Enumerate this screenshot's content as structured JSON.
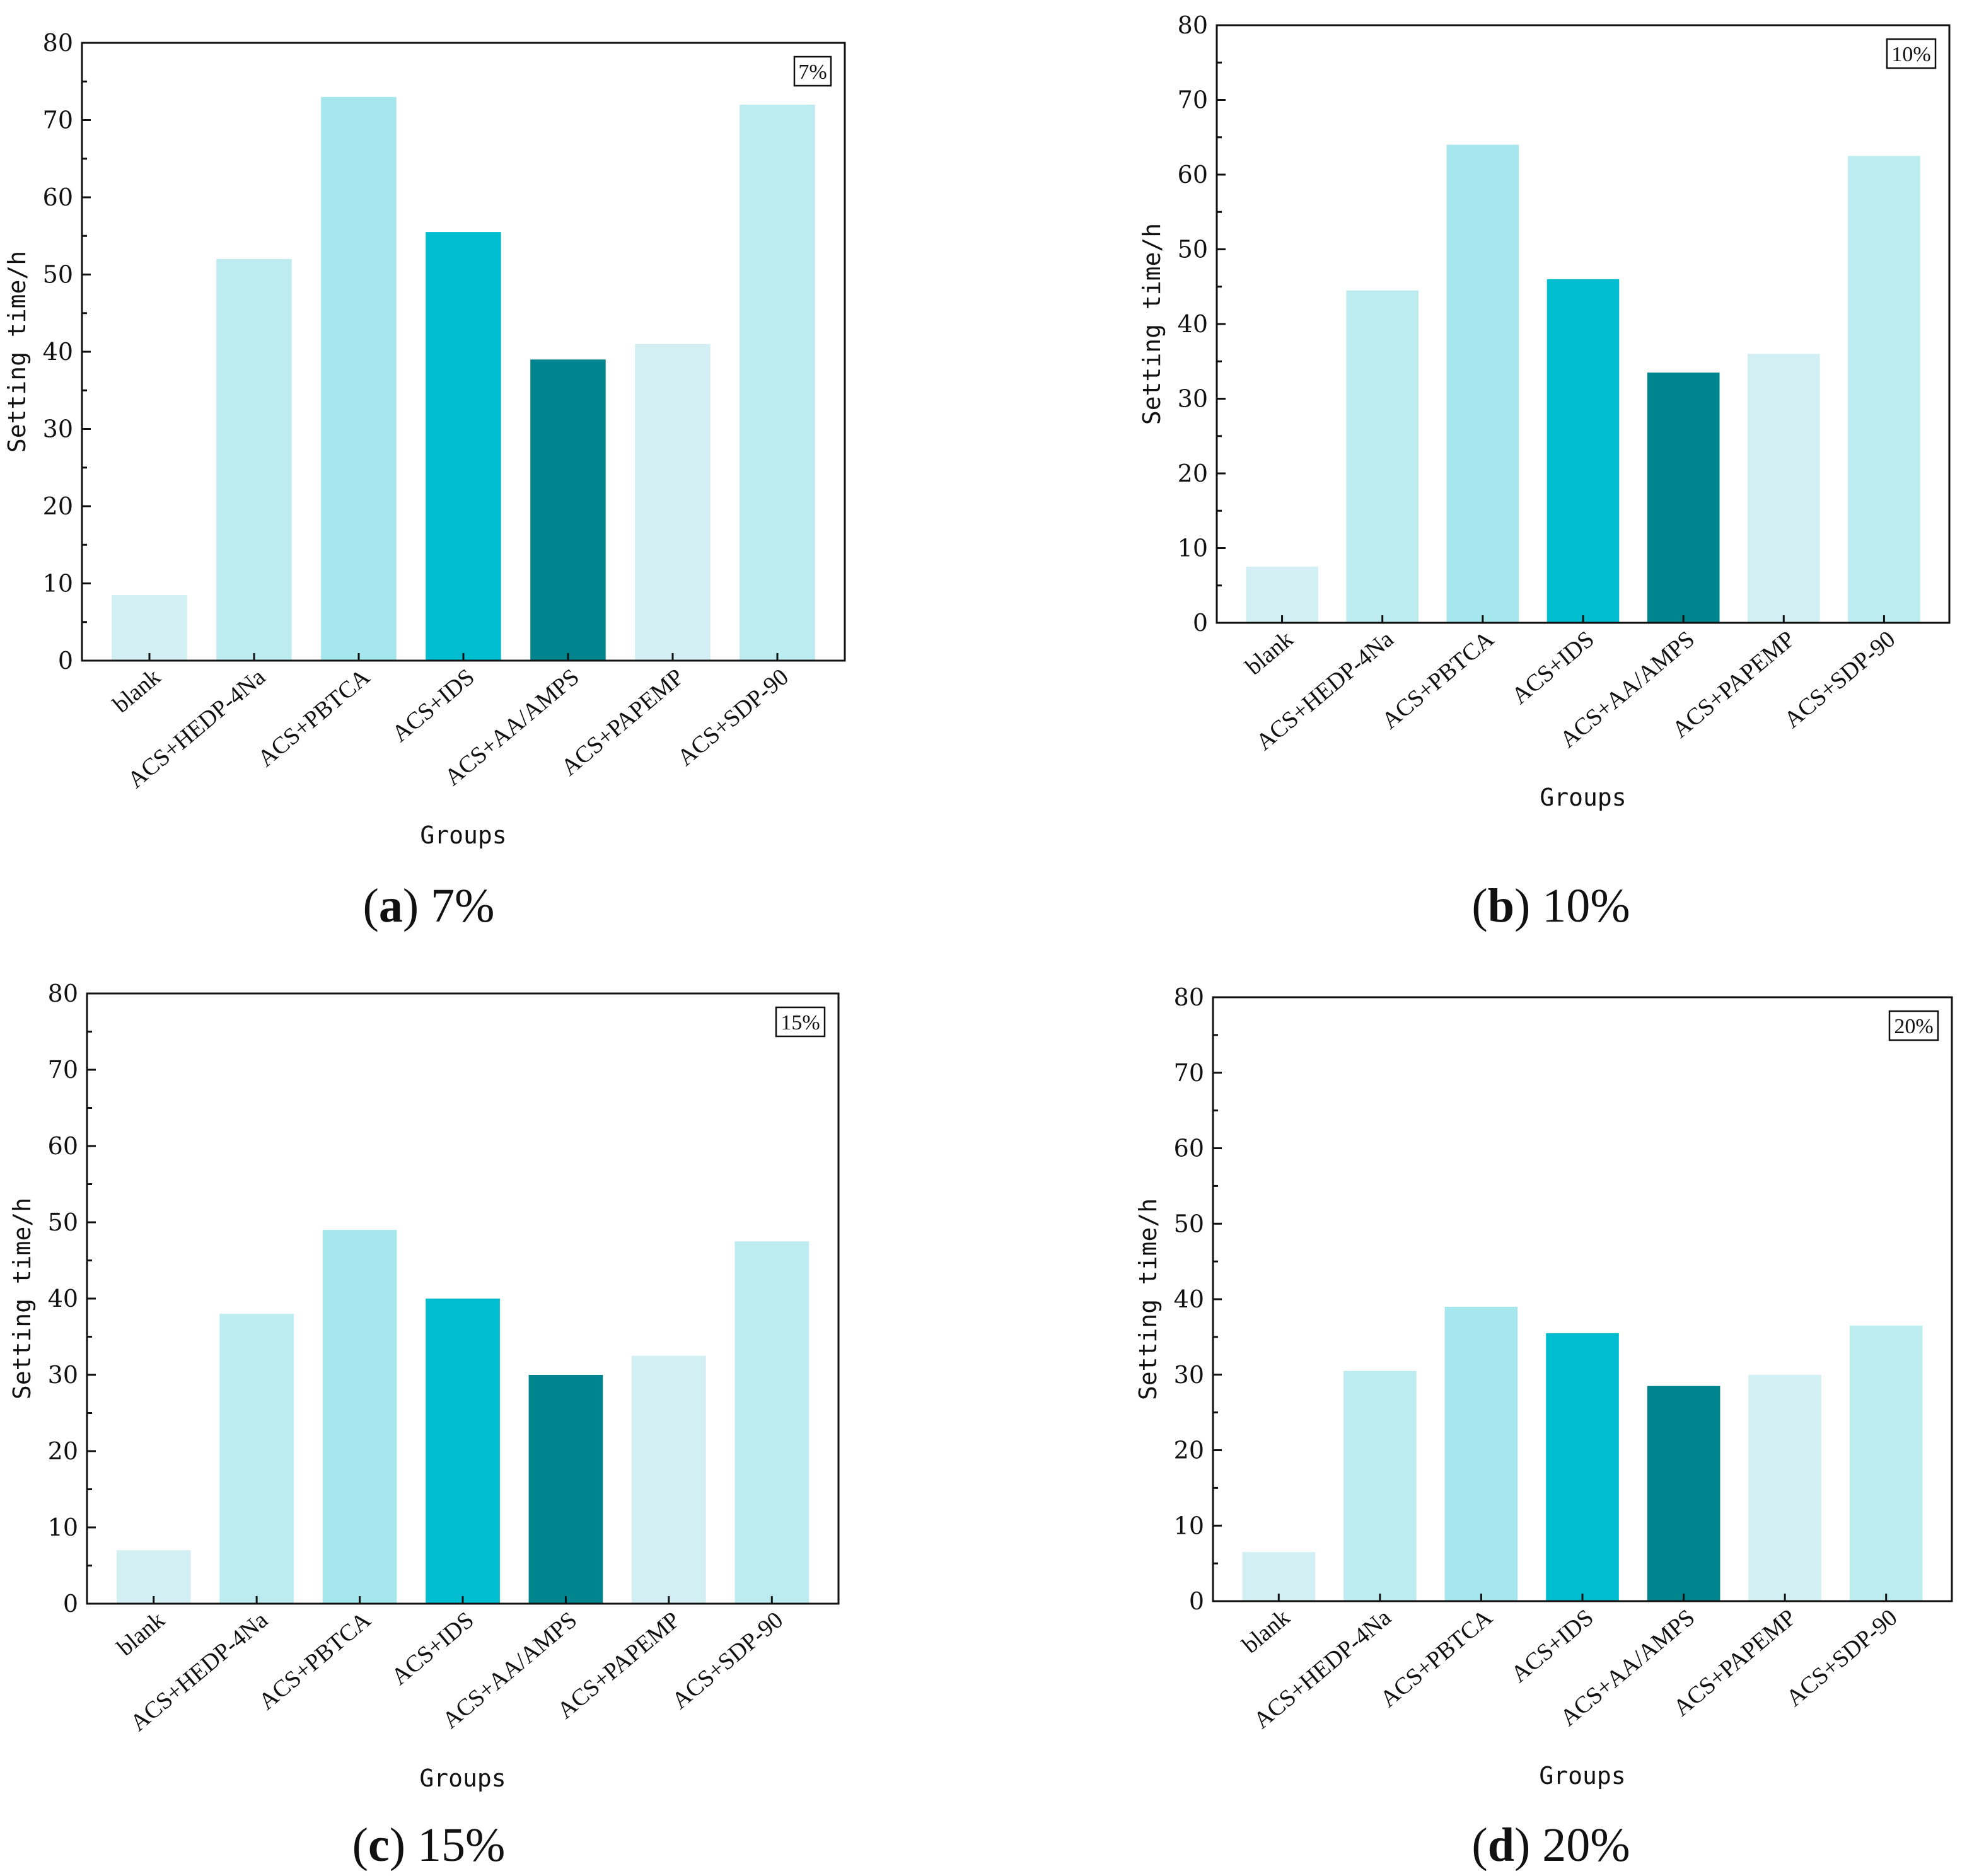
{
  "figure": {
    "colors": [
      "#d2eff4",
      "#bdecf0",
      "#a6e6ed",
      "#00bdd0",
      "#00858f",
      "#d2eff4",
      "#bdecf0"
    ]
  },
  "chart_data": [
    {
      "type": "bar",
      "panel": "a",
      "caption_letter": "a",
      "caption_value": "7%",
      "tag": "7%",
      "categories": [
        "blank",
        "ACS+HEDP-4Na",
        "ACS+PBTCA",
        "ACS+IDS",
        "ACS+AA/AMPS",
        "ACS+PAPEMP",
        "ACS+SDP-90"
      ],
      "values": [
        8.5,
        52,
        73,
        55.5,
        39,
        41,
        72
      ],
      "xlabel": "Groups",
      "ylabel": "Setting time/h",
      "ylim": [
        0,
        80
      ],
      "yticks": [
        "0",
        "10",
        "20",
        "30",
        "40",
        "50",
        "60",
        "70",
        "80"
      ],
      "grid": false
    },
    {
      "type": "bar",
      "panel": "b",
      "caption_letter": "b",
      "caption_value": "10%",
      "tag": "10%",
      "categories": [
        "blank",
        "ACS+HEDP-4Na",
        "ACS+PBTCA",
        "ACS+IDS",
        "ACS+AA/AMPS",
        "ACS+PAPEMP",
        "ACS+SDP-90"
      ],
      "values": [
        7.5,
        44.5,
        64,
        46,
        33.5,
        36,
        62.5
      ],
      "xlabel": "Groups",
      "ylabel": "Setting time/h",
      "ylim": [
        0,
        80
      ],
      "yticks": [
        "0",
        "10",
        "20",
        "30",
        "40",
        "50",
        "60",
        "70",
        "80"
      ],
      "grid": false
    },
    {
      "type": "bar",
      "panel": "c",
      "caption_letter": "c",
      "caption_value": "15%",
      "tag": "15%",
      "categories": [
        "blank",
        "ACS+HEDP-4Na",
        "ACS+PBTCA",
        "ACS+IDS",
        "ACS+AA/AMPS",
        "ACS+PAPEMP",
        "ACS+SDP-90"
      ],
      "values": [
        7,
        38,
        49,
        40,
        30,
        32.5,
        47.5
      ],
      "xlabel": "Groups",
      "ylabel": "Setting time/h",
      "ylim": [
        0,
        80
      ],
      "yticks": [
        "0",
        "10",
        "20",
        "30",
        "40",
        "50",
        "60",
        "70",
        "80"
      ],
      "grid": false
    },
    {
      "type": "bar",
      "panel": "d",
      "caption_letter": "d",
      "caption_value": "20%",
      "tag": "20%",
      "categories": [
        "blank",
        "ACS+HEDP-4Na",
        "ACS+PBTCA",
        "ACS+IDS",
        "ACS+AA/AMPS",
        "ACS+PAPEMP",
        "ACS+SDP-90"
      ],
      "values": [
        6.5,
        30.5,
        39,
        35.5,
        28.5,
        30,
        36.5
      ],
      "xlabel": "Groups",
      "ylabel": "Setting time/h",
      "ylim": [
        0,
        80
      ],
      "yticks": [
        "0",
        "10",
        "20",
        "30",
        "40",
        "50",
        "60",
        "70",
        "80"
      ],
      "grid": false
    }
  ]
}
